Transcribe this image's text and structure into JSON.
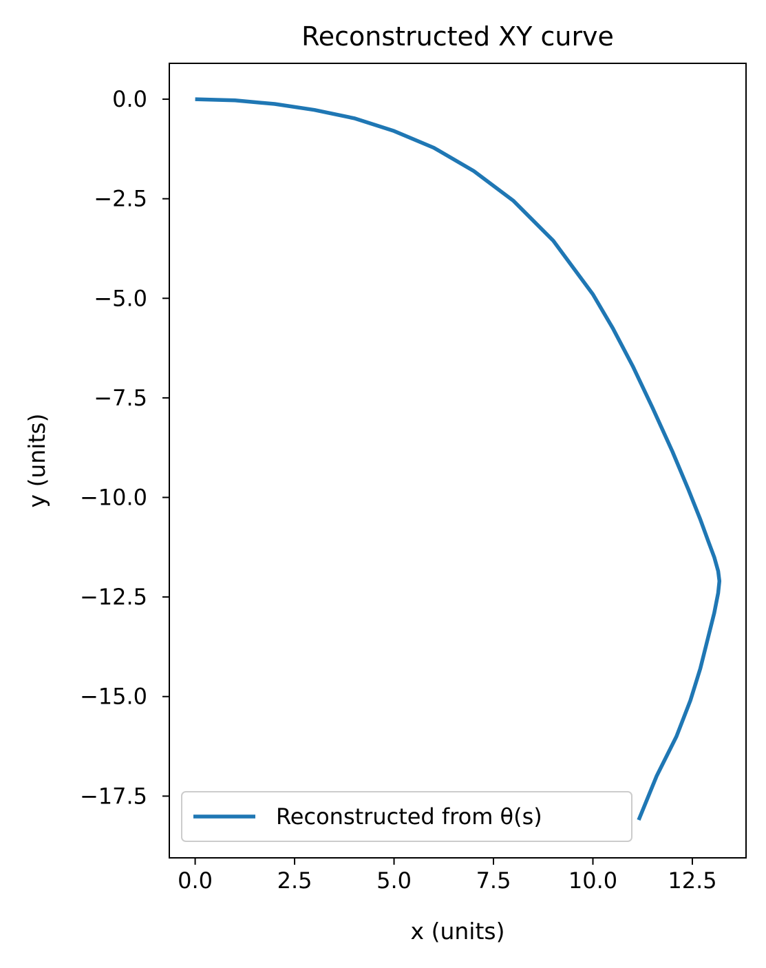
{
  "chart_data": {
    "type": "line",
    "title": "Reconstructed XY curve",
    "xlabel": "x (units)",
    "ylabel": "y (units)",
    "xlim": [
      -0.65,
      13.85
    ],
    "ylim": [
      -19.05,
      0.9
    ],
    "xticks": [
      0.0,
      2.5,
      5.0,
      7.5,
      10.0,
      12.5
    ],
    "xtick_labels": [
      "0.0",
      "2.5",
      "5.0",
      "7.5",
      "10.0",
      "12.5"
    ],
    "yticks": [
      0.0,
      -2.5,
      -5.0,
      -7.5,
      -10.0,
      -12.5,
      -15.0,
      -17.5
    ],
    "ytick_labels": [
      "0.0",
      "−2.5",
      "−5.0",
      "−7.5",
      "−10.0",
      "−12.5",
      "−15.0",
      "−17.5"
    ],
    "grid": false,
    "legend_position": "lower-left",
    "series": [
      {
        "name": "Reconstructed from θ(s)",
        "color": "#1f77b4",
        "x": [
          0.0,
          1.0,
          2.0,
          3.0,
          4.0,
          5.0,
          6.0,
          7.0,
          8.0,
          9.0,
          10.0,
          10.5,
          11.0,
          11.5,
          12.0,
          12.4,
          12.7,
          12.9,
          13.05,
          13.15,
          13.18,
          13.15,
          13.05,
          12.9,
          12.7,
          12.45,
          12.1,
          11.6,
          11.15
        ],
        "y": [
          0.0,
          -0.03,
          -0.12,
          -0.27,
          -0.48,
          -0.8,
          -1.22,
          -1.8,
          -2.55,
          -3.55,
          -4.9,
          -5.75,
          -6.7,
          -7.75,
          -8.85,
          -9.8,
          -10.55,
          -11.1,
          -11.5,
          -11.85,
          -12.1,
          -12.4,
          -12.9,
          -13.5,
          -14.3,
          -15.1,
          -16.0,
          -17.0,
          -18.1
        ]
      }
    ]
  }
}
